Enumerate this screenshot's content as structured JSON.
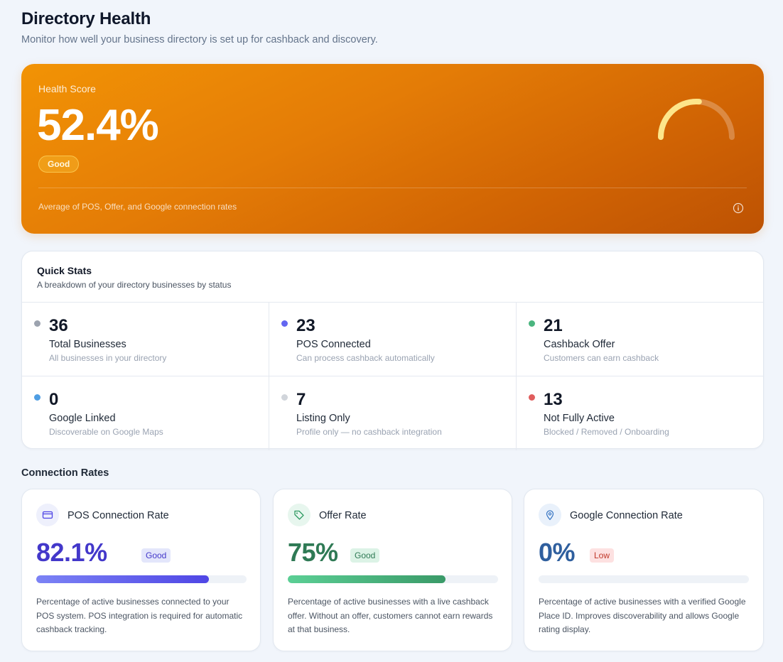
{
  "header": {
    "title": "Directory Health",
    "subtitle": "Monitor how well your business directory is set up for cashback and discovery."
  },
  "health": {
    "label": "Health Score",
    "value": "52.4%",
    "score": 52.4,
    "badge": "Good",
    "note": "Average of POS, Offer, and Google connection rates",
    "info_icon": "info-icon"
  },
  "quick_stats": {
    "title": "Quick Stats",
    "subtitle": "A breakdown of your directory businesses by status",
    "items": [
      {
        "value": "36",
        "label": "Total Businesses",
        "desc": "All businesses in your directory",
        "color": "#9ca3af"
      },
      {
        "value": "23",
        "label": "POS Connected",
        "desc": "Can process cashback automatically",
        "color": "#6366f1"
      },
      {
        "value": "21",
        "label": "Cashback Offer",
        "desc": "Customers can earn cashback",
        "color": "#4ab57f"
      },
      {
        "value": "0",
        "label": "Google Linked",
        "desc": "Discoverable on Google Maps",
        "color": "#4f9ee3"
      },
      {
        "value": "7",
        "label": "Listing Only",
        "desc": "Profile only — no cashback integration",
        "color": "#d1d5db"
      },
      {
        "value": "13",
        "label": "Not Fully Active",
        "desc": "Blocked / Removed / Onboarding",
        "color": "#e05d5d"
      }
    ]
  },
  "connection_rates": {
    "title": "Connection Rates",
    "cards": [
      {
        "title": "POS Connection Rate",
        "value": "82.1%",
        "fraction": 0.821,
        "badge": "Good",
        "icon": "credit-card-icon",
        "desc": "Percentage of active businesses connected to your POS system. POS integration is required for automatic cashback tracking.",
        "color": "#4338ca"
      },
      {
        "title": "Offer Rate",
        "value": "75%",
        "fraction": 0.75,
        "badge": "Good",
        "icon": "tag-icon",
        "desc": "Percentage of active businesses with a live cashback offer. Without an offer, customers cannot earn rewards at that business.",
        "color": "#2f7a55"
      },
      {
        "title": "Google Connection Rate",
        "value": "0%",
        "fraction": 0,
        "badge": "Low",
        "icon": "map-pin-icon",
        "desc": "Percentage of active businesses with a verified Google Place ID. Improves discoverability and allows Google rating display.",
        "color": "#2f5f9e"
      }
    ]
  }
}
